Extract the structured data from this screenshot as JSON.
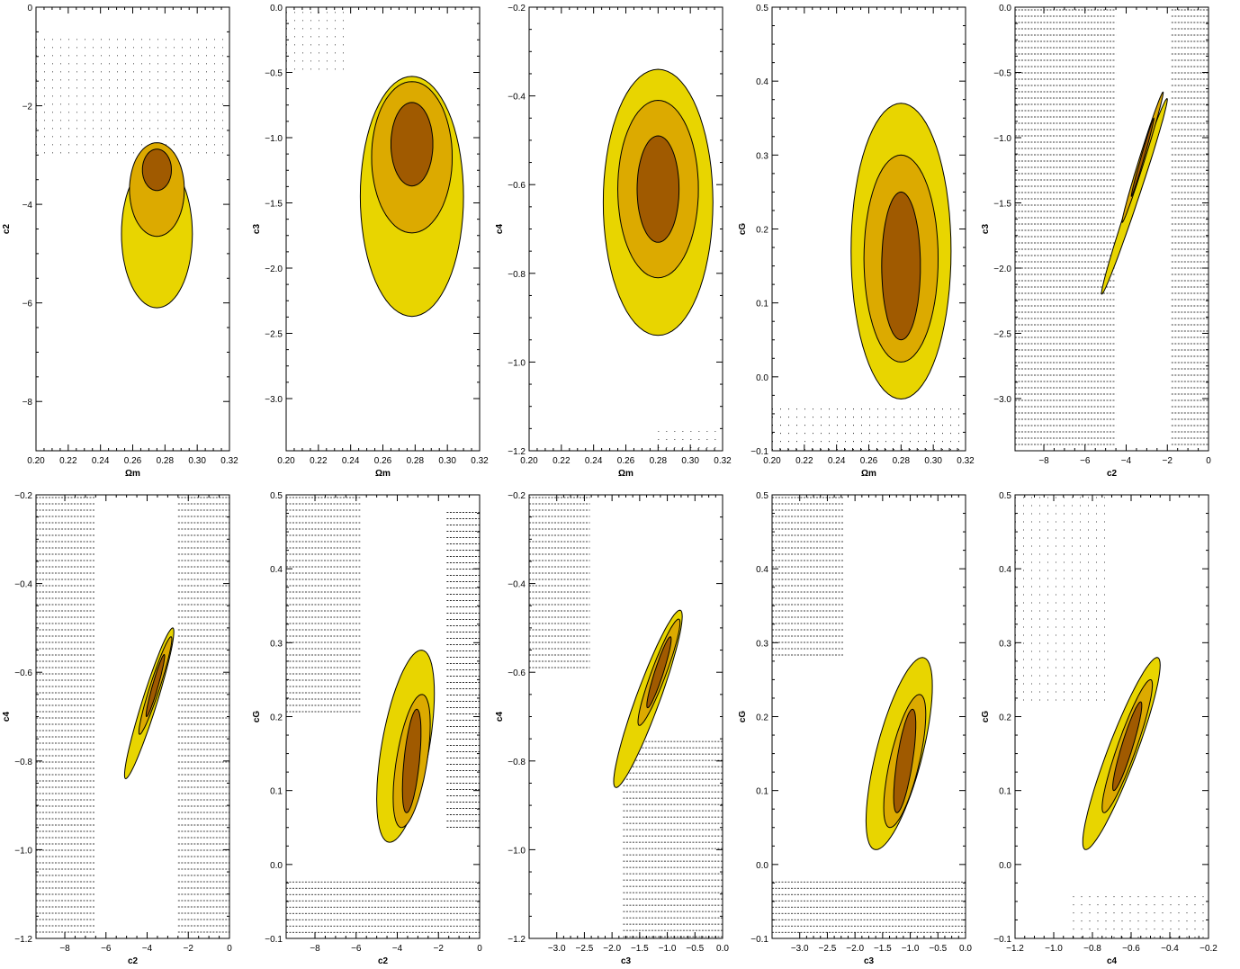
{
  "figure": {
    "layout": "2x5 grid of marginalized 2D posterior contour panels",
    "contour_colors": [
      "#e8d500",
      "#dcaa00",
      "#a05a00"
    ],
    "contour_levels": [
      "68%",
      "95%",
      "99%"
    ],
    "excluded_region_style": "dotted"
  },
  "chart_data": [
    {
      "type": "contour",
      "panel": "omega-m-vs-c2",
      "xlabel": "Ωm",
      "ylabel": "c2",
      "xlim": [
        0.2,
        0.32
      ],
      "ylim": [
        -9,
        0
      ],
      "xticks": [
        0.2,
        0.22,
        0.24,
        0.26,
        0.28,
        0.3,
        0.32
      ],
      "xtick_labels": [
        "0.20",
        "0.22",
        "0.24",
        "0.26",
        "0.28",
        "0.30",
        "0.32"
      ],
      "yticks": [
        -8,
        -6,
        -4,
        -2,
        0
      ],
      "ytick_labels": [
        "−8",
        "−6",
        "−4",
        "−2",
        "0"
      ],
      "center": [
        0.275,
        -3.3
      ],
      "corr": 0,
      "contours": [
        {
          "level": "outer",
          "sx": 0.022,
          "sy": 1.5,
          "offx": 0,
          "offy": -1.3
        },
        {
          "level": "middle",
          "sx": 0.017,
          "sy": 0.95,
          "offx": 0,
          "offy": -0.4
        },
        {
          "level": "inner",
          "sx": 0.009,
          "sy": 0.42,
          "offx": 0,
          "offy": 0
        }
      ],
      "excluded": [
        {
          "corner": "top-left",
          "x0": 0.2,
          "y0": -3.1,
          "x1": 0.32,
          "y1": -0.6,
          "hatch": "dots"
        }
      ]
    },
    {
      "type": "contour",
      "panel": "omega-m-vs-c3",
      "xlabel": "Ωm",
      "ylabel": "c3",
      "xlim": [
        0.2,
        0.32
      ],
      "ylim": [
        -3.4,
        0
      ],
      "xticks": [
        0.2,
        0.22,
        0.24,
        0.26,
        0.28,
        0.3,
        0.32
      ],
      "xtick_labels": [
        "0.20",
        "0.22",
        "0.24",
        "0.26",
        "0.28",
        "0.30",
        "0.32"
      ],
      "yticks": [
        -3.0,
        -2.5,
        -2.0,
        -1.5,
        -1.0,
        -0.5,
        0.0
      ],
      "ytick_labels": [
        "−3.0",
        "−2.5",
        "−2.0",
        "−1.5",
        "−1.0",
        "−0.5",
        "0.0"
      ],
      "center": [
        0.278,
        -1.05
      ],
      "corr": 0,
      "contours": [
        {
          "level": "outer",
          "sx": 0.032,
          "sy": 0.92,
          "offx": 0,
          "offy": -0.4
        },
        {
          "level": "middle",
          "sx": 0.025,
          "sy": 0.58,
          "offx": 0,
          "offy": -0.1
        },
        {
          "level": "inner",
          "sx": 0.013,
          "sy": 0.32,
          "offx": 0,
          "offy": 0
        }
      ],
      "excluded": [
        {
          "corner": "top-left",
          "x0": 0.2,
          "y0": -0.52,
          "x1": 0.24,
          "y1": -0.02,
          "hatch": "dots"
        }
      ]
    },
    {
      "type": "contour",
      "panel": "omega-m-vs-c4",
      "xlabel": "Ωm",
      "ylabel": "c4",
      "xlim": [
        0.2,
        0.32
      ],
      "ylim": [
        -1.2,
        -0.2
      ],
      "xticks": [
        0.2,
        0.22,
        0.24,
        0.26,
        0.28,
        0.3,
        0.32
      ],
      "xtick_labels": [
        "0.20",
        "0.22",
        "0.24",
        "0.26",
        "0.28",
        "0.30",
        "0.32"
      ],
      "yticks": [
        -1.2,
        -1.0,
        -0.8,
        -0.6,
        -0.4,
        -0.2
      ],
      "ytick_labels": [
        "−1.2",
        "−1.0",
        "−0.8",
        "−0.6",
        "−0.4",
        "−0.2"
      ],
      "center": [
        0.28,
        -0.61
      ],
      "corr": 0,
      "contours": [
        {
          "level": "outer",
          "sx": 0.034,
          "sy": 0.3,
          "offx": 0,
          "offy": -0.03
        },
        {
          "level": "middle",
          "sx": 0.025,
          "sy": 0.2,
          "offx": 0,
          "offy": 0
        },
        {
          "level": "inner",
          "sx": 0.013,
          "sy": 0.12,
          "offx": 0,
          "offy": 0
        }
      ],
      "excluded": [
        {
          "corner": "bottom-right",
          "x0": 0.28,
          "y0": -1.2,
          "x1": 0.32,
          "y1": -1.15,
          "hatch": "dots"
        }
      ]
    },
    {
      "type": "contour",
      "panel": "omega-m-vs-cG",
      "xlabel": "Ωm",
      "ylabel": "cG",
      "xlim": [
        0.2,
        0.32
      ],
      "ylim": [
        -0.1,
        0.5
      ],
      "xticks": [
        0.2,
        0.22,
        0.24,
        0.26,
        0.28,
        0.3,
        0.32
      ],
      "xtick_labels": [
        "0.20",
        "0.22",
        "0.24",
        "0.26",
        "0.28",
        "0.30",
        "0.32"
      ],
      "yticks": [
        -0.1,
        0.0,
        0.1,
        0.2,
        0.3,
        0.4,
        0.5
      ],
      "ytick_labels": [
        "−0.1",
        "0.0",
        "0.1",
        "0.2",
        "0.3",
        "0.4",
        "0.5"
      ],
      "center": [
        0.28,
        0.15
      ],
      "corr": 0,
      "contours": [
        {
          "level": "outer",
          "sx": 0.031,
          "sy": 0.2,
          "offx": 0,
          "offy": 0.02
        },
        {
          "level": "middle",
          "sx": 0.023,
          "sy": 0.14,
          "offx": 0,
          "offy": 0.01
        },
        {
          "level": "inner",
          "sx": 0.012,
          "sy": 0.1,
          "offx": 0,
          "offy": 0
        }
      ],
      "excluded": [
        {
          "corner": "bottom",
          "x0": 0.2,
          "y0": -0.1,
          "x1": 0.32,
          "y1": -0.04,
          "hatch": "dots"
        }
      ]
    },
    {
      "type": "contour",
      "panel": "c2-vs-c3",
      "xlabel": "c2",
      "ylabel": "c3",
      "xlim": [
        -9.4,
        0
      ],
      "ylim": [
        -3.4,
        0
      ],
      "xticks": [
        -8,
        -6,
        -4,
        -2,
        0
      ],
      "xtick_labels": [
        "−8",
        "−6",
        "−4",
        "−2",
        "0"
      ],
      "yticks": [
        -3.0,
        -2.5,
        -2.0,
        -1.5,
        -1.0,
        -0.5,
        0.0
      ],
      "ytick_labels": [
        "−3.0",
        "−2.5",
        "−2.0",
        "−1.5",
        "−1.0",
        "−0.5",
        "0.0"
      ],
      "center": [
        -3.2,
        -1.15
      ],
      "corr": 0.99,
      "contours": [
        {
          "level": "outer",
          "sx": 1.6,
          "sy": 0.75,
          "offx": -0.4,
          "offy": -0.3
        },
        {
          "level": "middle",
          "sx": 1.0,
          "sy": 0.5,
          "offx": 0,
          "offy": 0
        },
        {
          "level": "inner",
          "sx": 0.55,
          "sy": 0.3,
          "offx": 0,
          "offy": 0
        }
      ],
      "excluded": [
        {
          "corner": "left",
          "x0": -9.4,
          "y0": -3.4,
          "x1": -4.5,
          "y1": 0,
          "hatch": "lines"
        },
        {
          "corner": "right",
          "x0": -1.8,
          "y0": -3.4,
          "x1": 0,
          "y1": 0,
          "hatch": "lines"
        }
      ]
    },
    {
      "type": "contour",
      "panel": "c2-vs-c4",
      "xlabel": "c2",
      "ylabel": "c4",
      "xlim": [
        -9.4,
        0
      ],
      "ylim": [
        -1.2,
        -0.2
      ],
      "xticks": [
        -8,
        -6,
        -4,
        -2,
        0
      ],
      "xtick_labels": [
        "−8",
        "−6",
        "−4",
        "−2",
        "0"
      ],
      "yticks": [
        -1.2,
        -1.0,
        -0.8,
        -0.6,
        -0.4,
        -0.2
      ],
      "ytick_labels": [
        "−1.2",
        "−1.0",
        "−0.8",
        "−0.6",
        "−0.4",
        "−0.2"
      ],
      "center": [
        -3.6,
        -0.63
      ],
      "corr": 0.95,
      "contours": [
        {
          "level": "outer",
          "sx": 1.2,
          "sy": 0.17,
          "offx": -0.3,
          "offy": -0.04
        },
        {
          "level": "middle",
          "sx": 0.8,
          "sy": 0.11,
          "offx": 0,
          "offy": 0
        },
        {
          "level": "inner",
          "sx": 0.45,
          "sy": 0.07,
          "offx": 0,
          "offy": 0
        }
      ],
      "excluded": [
        {
          "corner": "left",
          "x0": -9.4,
          "y0": -1.2,
          "x1": -6.5,
          "y1": -0.2,
          "hatch": "lines"
        },
        {
          "corner": "right",
          "x0": -2.5,
          "y0": -1.2,
          "x1": 0,
          "y1": -0.2,
          "hatch": "lines"
        }
      ]
    },
    {
      "type": "contour",
      "panel": "c2-vs-cG",
      "xlabel": "c2",
      "ylabel": "cG",
      "xlim": [
        -9.4,
        0
      ],
      "ylim": [
        -0.1,
        0.5
      ],
      "xticks": [
        -8,
        -6,
        -4,
        -2,
        0
      ],
      "xtick_labels": [
        "−8",
        "−6",
        "−4",
        "−2",
        "0"
      ],
      "yticks": [
        -0.1,
        0.0,
        0.1,
        0.2,
        0.3,
        0.4,
        0.5
      ],
      "ytick_labels": [
        "−0.1",
        "0.0",
        "0.1",
        "0.2",
        "0.3",
        "0.4",
        "0.5"
      ],
      "center": [
        -3.3,
        0.14
      ],
      "corr": 0.55,
      "contours": [
        {
          "level": "outer",
          "sx": 1.4,
          "sy": 0.13,
          "offx": -0.3,
          "offy": 0.02
        },
        {
          "level": "middle",
          "sx": 0.9,
          "sy": 0.09,
          "offx": 0,
          "offy": 0
        },
        {
          "level": "inner",
          "sx": 0.45,
          "sy": 0.07,
          "offx": 0,
          "offy": 0
        }
      ],
      "excluded": [
        {
          "corner": "top-left",
          "x0": -9.4,
          "y0": 0.2,
          "x1": -5.8,
          "y1": 0.5,
          "hatch": "lines"
        },
        {
          "corner": "right",
          "x0": -1.6,
          "y0": 0.05,
          "x1": 0,
          "y1": 0.48,
          "hatch": "lines"
        },
        {
          "corner": "bottom",
          "x0": -9.4,
          "y0": -0.1,
          "x1": 0,
          "y1": -0.02,
          "hatch": "lines"
        }
      ]
    },
    {
      "type": "contour",
      "panel": "c3-vs-c4",
      "xlabel": "c3",
      "ylabel": "c4",
      "xlim": [
        -3.5,
        0
      ],
      "ylim": [
        -1.2,
        -0.2
      ],
      "xticks": [
        -3.0,
        -2.5,
        -2.0,
        -1.5,
        -1.0,
        -0.5,
        0.0
      ],
      "xtick_labels": [
        "−3.0",
        "−2.5",
        "−2.0",
        "−1.5",
        "−1.0",
        "−0.5",
        "0.0"
      ],
      "yticks": [
        -1.2,
        -1.0,
        -0.8,
        -0.6,
        -0.4,
        -0.2
      ],
      "ytick_labels": [
        "−1.2",
        "−1.0",
        "−0.8",
        "−0.6",
        "−0.4",
        "−0.2"
      ],
      "center": [
        -1.15,
        -0.6
      ],
      "corr": 0.93,
      "contours": [
        {
          "level": "outer",
          "sx": 0.62,
          "sy": 0.2,
          "offx": -0.2,
          "offy": -0.06
        },
        {
          "level": "middle",
          "sx": 0.38,
          "sy": 0.12,
          "offx": 0,
          "offy": 0
        },
        {
          "level": "inner",
          "sx": 0.22,
          "sy": 0.08,
          "offx": 0,
          "offy": 0
        }
      ],
      "excluded": [
        {
          "corner": "top-left",
          "x0": -3.5,
          "y0": -0.6,
          "x1": -2.4,
          "y1": -0.2,
          "hatch": "lines"
        },
        {
          "corner": "bottom-right",
          "x0": -1.8,
          "y0": -1.2,
          "x1": 0,
          "y1": -0.75,
          "hatch": "lines"
        }
      ]
    },
    {
      "type": "contour",
      "panel": "c3-vs-cG",
      "xlabel": "c3",
      "ylabel": "cG",
      "xlim": [
        -3.5,
        0
      ],
      "ylim": [
        -0.1,
        0.5
      ],
      "xticks": [
        -3.0,
        -2.5,
        -2.0,
        -1.5,
        -1.0,
        -0.5,
        0.0
      ],
      "xtick_labels": [
        "−3.0",
        "−2.5",
        "−2.0",
        "−1.5",
        "−1.0",
        "−0.5",
        "0.0"
      ],
      "yticks": [
        -0.1,
        0.0,
        0.1,
        0.2,
        0.3,
        0.4,
        0.5
      ],
      "ytick_labels": [
        "−0.1",
        "0.0",
        "0.1",
        "0.2",
        "0.3",
        "0.4",
        "0.5"
      ],
      "center": [
        -1.1,
        0.14
      ],
      "corr": 0.7,
      "contours": [
        {
          "level": "outer",
          "sx": 0.6,
          "sy": 0.13,
          "offx": -0.1,
          "offy": 0.01
        },
        {
          "level": "middle",
          "sx": 0.38,
          "sy": 0.09,
          "offx": 0,
          "offy": 0
        },
        {
          "level": "inner",
          "sx": 0.2,
          "sy": 0.07,
          "offx": 0,
          "offy": 0
        }
      ],
      "excluded": [
        {
          "corner": "top-left",
          "x0": -3.5,
          "y0": 0.28,
          "x1": -2.2,
          "y1": 0.5,
          "hatch": "lines"
        },
        {
          "corner": "bottom",
          "x0": -3.5,
          "y0": -0.1,
          "x1": 0,
          "y1": -0.02,
          "hatch": "lines"
        }
      ]
    },
    {
      "type": "contour",
      "panel": "c4-vs-cG",
      "xlabel": "c4",
      "ylabel": "cG",
      "xlim": [
        -1.2,
        -0.2
      ],
      "ylim": [
        -0.1,
        0.5
      ],
      "xticks": [
        -1.2,
        -1.0,
        -0.8,
        -0.6,
        -0.4,
        -0.2
      ],
      "xtick_labels": [
        "−1.2",
        "−1.0",
        "−0.8",
        "−0.6",
        "−0.4",
        "−0.2"
      ],
      "yticks": [
        -0.1,
        0.0,
        0.1,
        0.2,
        0.3,
        0.4,
        0.5
      ],
      "ytick_labels": [
        "−0.1",
        "0.0",
        "0.1",
        "0.2",
        "0.3",
        "0.4",
        "0.5"
      ],
      "center": [
        -0.62,
        0.16
      ],
      "corr": 0.92,
      "contours": [
        {
          "level": "outer",
          "sx": 0.2,
          "sy": 0.13,
          "offx": -0.03,
          "offy": -0.01
        },
        {
          "level": "middle",
          "sx": 0.13,
          "sy": 0.09,
          "offx": 0,
          "offy": 0
        },
        {
          "level": "inner",
          "sx": 0.075,
          "sy": 0.06,
          "offx": 0,
          "offy": 0
        }
      ],
      "excluded": [
        {
          "corner": "top-left",
          "x0": -1.2,
          "y0": 0.22,
          "x1": -0.7,
          "y1": 0.5,
          "hatch": "dots"
        },
        {
          "corner": "bottom-right",
          "x0": -0.9,
          "y0": -0.1,
          "x1": -0.2,
          "y1": -0.04,
          "hatch": "dots"
        }
      ]
    }
  ]
}
